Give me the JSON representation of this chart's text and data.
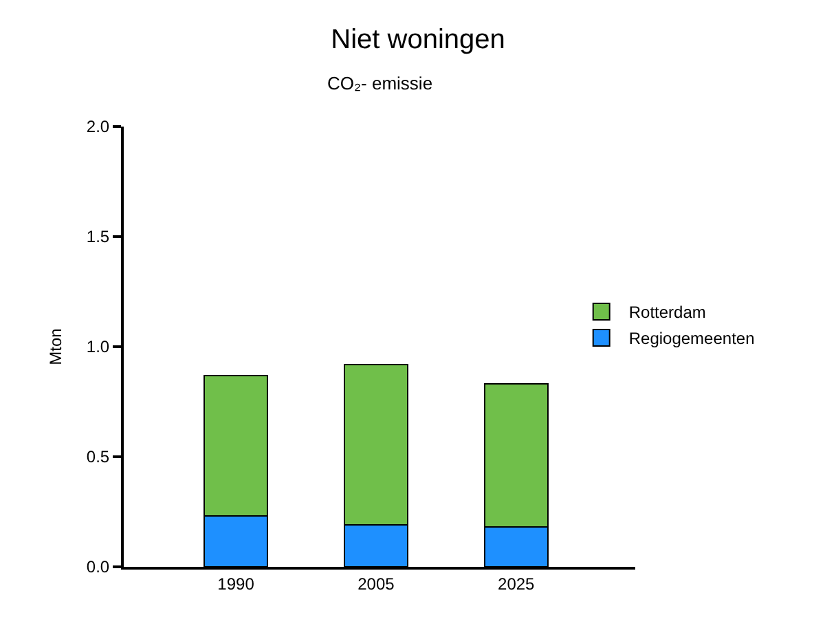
{
  "chart_data": {
    "type": "bar",
    "title": "Niet woningen",
    "subtitle": "CO₂- emissie",
    "ylabel": "Mton",
    "categories": [
      "1990",
      "2005",
      "2025"
    ],
    "stacked": true,
    "series": [
      {
        "name": "Regiogemeenten",
        "color": "#1e90ff",
        "values": [
          0.23,
          0.19,
          0.18
        ]
      },
      {
        "name": "Rotterdam",
        "color": "#70bf4a",
        "values": [
          0.64,
          0.73,
          0.65
        ]
      }
    ],
    "ylim": [
      0,
      2
    ],
    "yticks": [
      {
        "value": 0,
        "label": "0.0"
      },
      {
        "value": 0.5,
        "label": "0.5"
      },
      {
        "value": 1,
        "label": "1.0"
      },
      {
        "value": 1.5,
        "label": "1.5"
      },
      {
        "value": 2,
        "label": "2.0"
      }
    ],
    "legend": "right"
  }
}
